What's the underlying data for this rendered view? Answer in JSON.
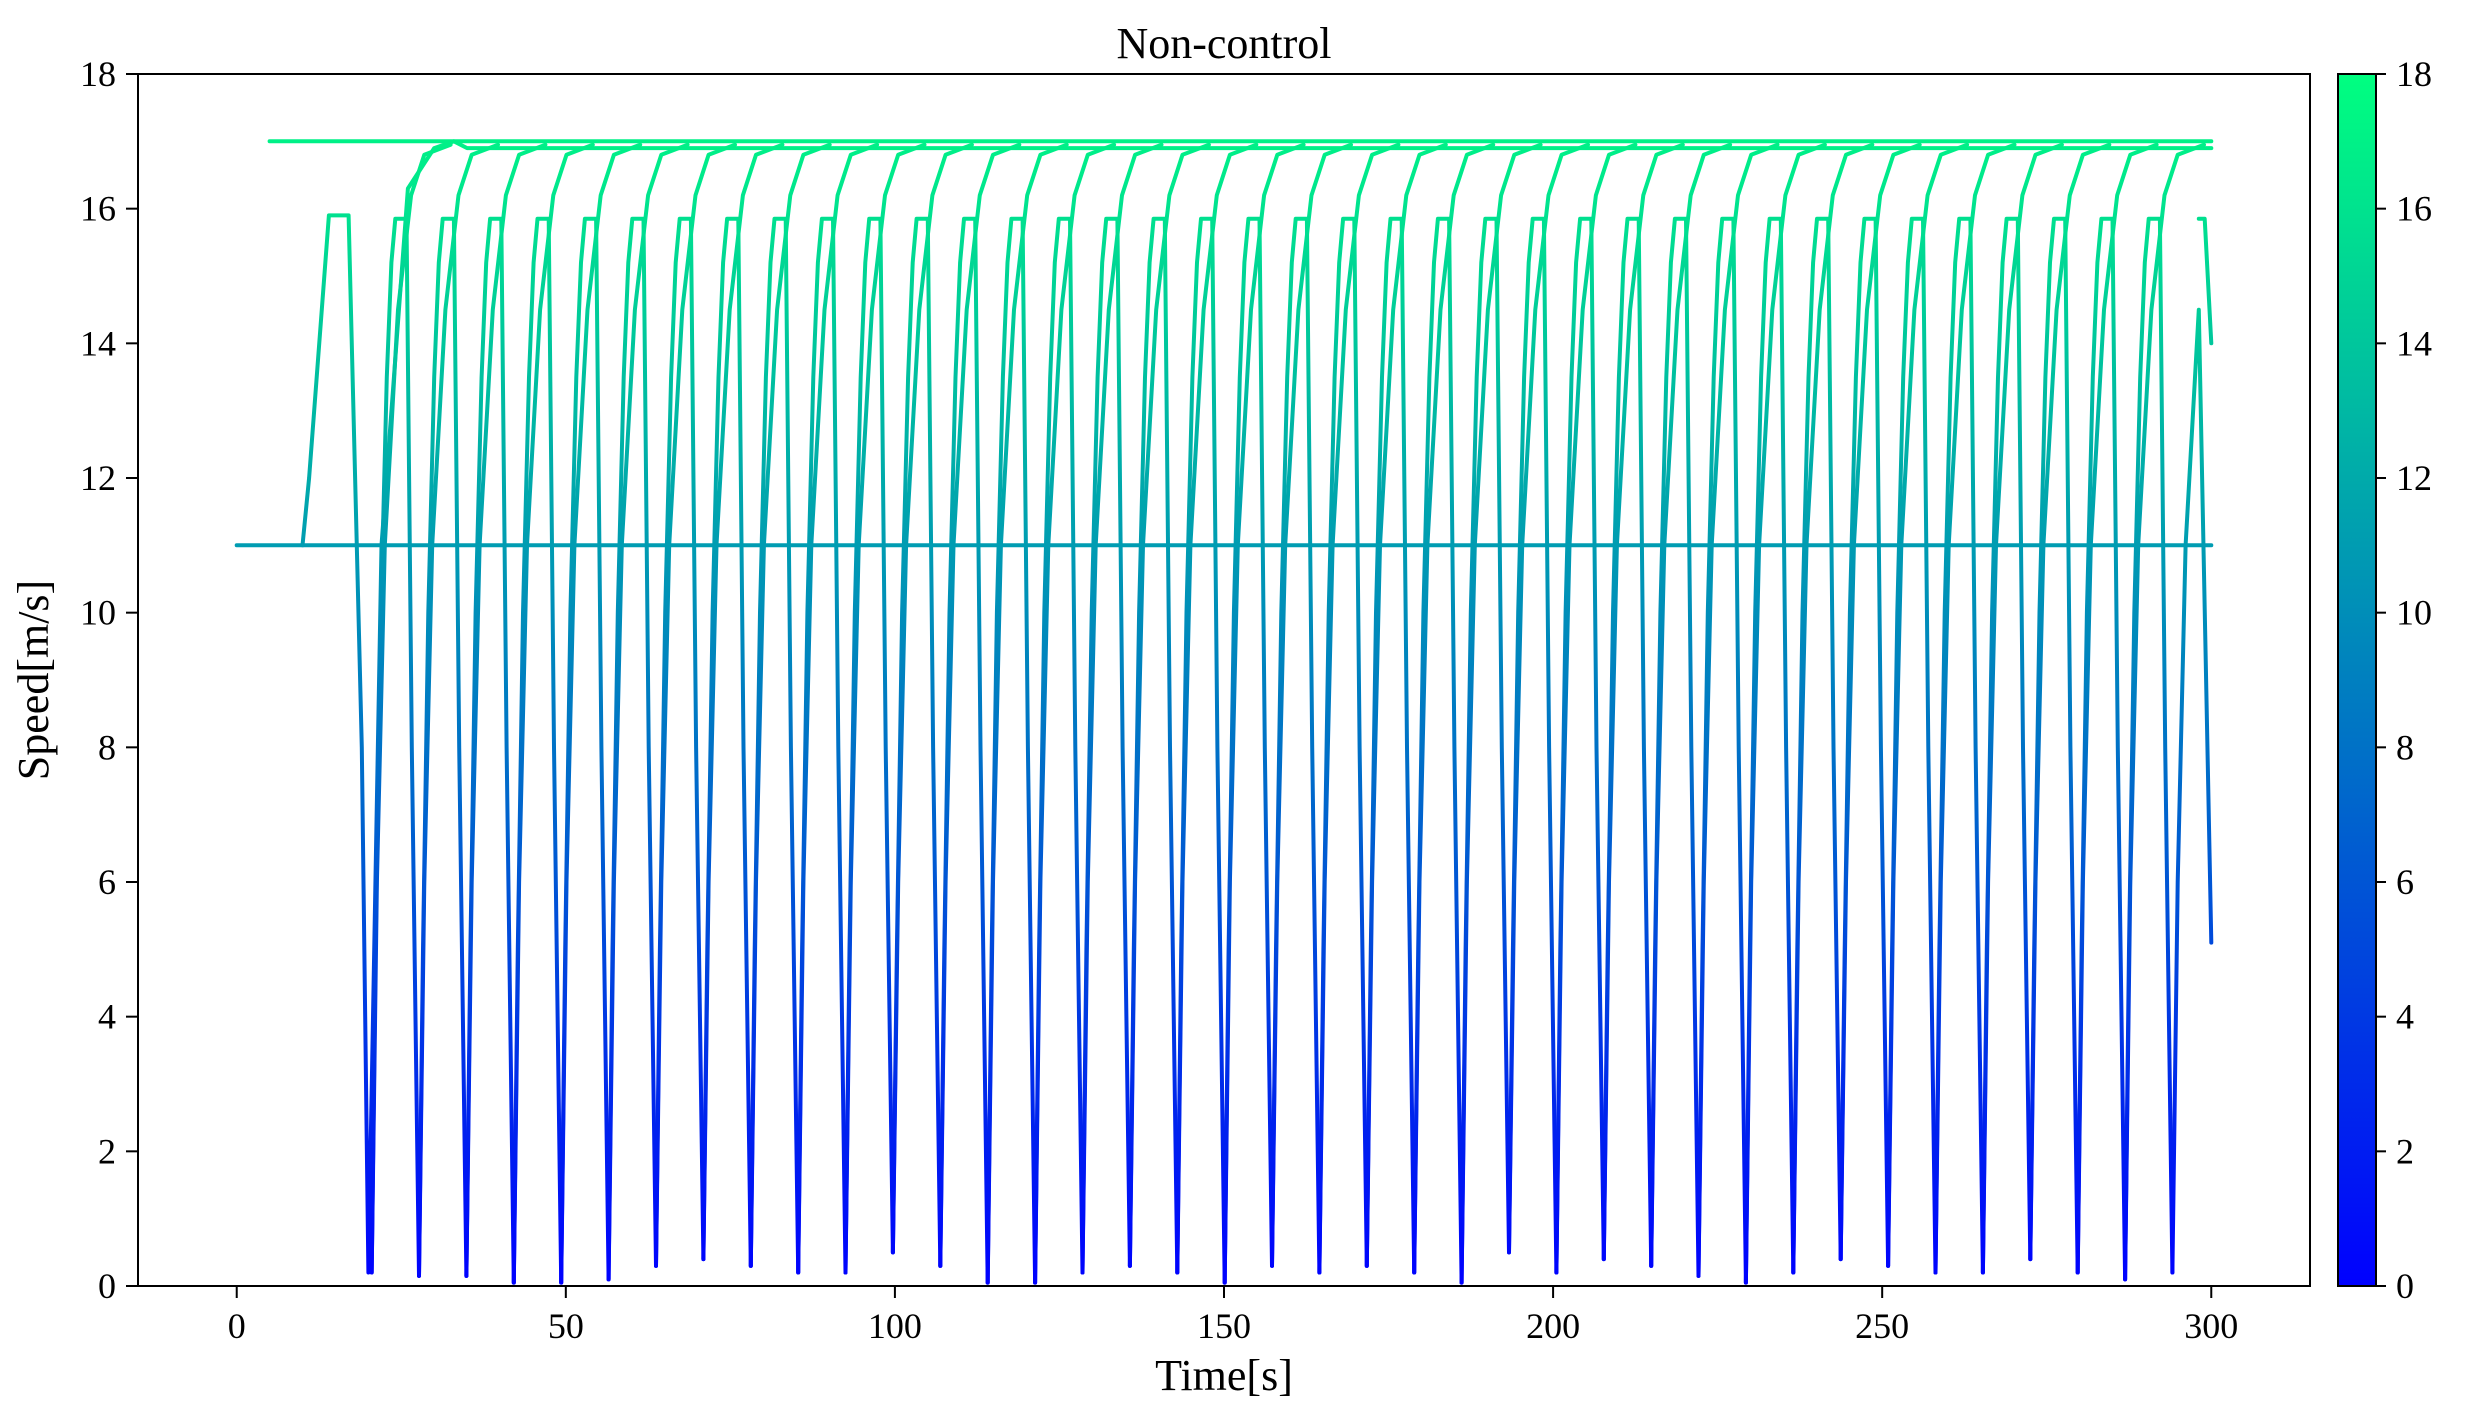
{
  "chart_data": {
    "type": "line",
    "title": "Non-control",
    "xlabel": "Time[s]",
    "ylabel": "Speed[m/s]",
    "xlim": [
      -15,
      315
    ],
    "ylim": [
      0,
      18
    ],
    "xticks": [
      0,
      50,
      100,
      150,
      200,
      250,
      300
    ],
    "yticks": [
      0,
      2,
      4,
      6,
      8,
      10,
      12,
      14,
      16,
      18
    ],
    "grid": false,
    "legend": "none",
    "colormap": {
      "name": "winter",
      "range": [
        0,
        18
      ],
      "ticks": [
        0,
        2,
        4,
        6,
        8,
        10,
        12,
        14,
        16,
        18
      ],
      "low_color": "#0000ff",
      "high_color": "#00ff80"
    },
    "color_encodes": "speed",
    "series": [
      {
        "x": [
          0,
          10,
          300
        ],
        "y": [
          11,
          11,
          11
        ]
      },
      {
        "x": [
          5,
          300
        ],
        "y": [
          17,
          17
        ]
      },
      {
        "x": [
          10,
          11,
          14,
          17,
          19,
          20,
          22,
          26,
          30,
          33,
          35,
          300
        ],
        "y": [
          11,
          12,
          15.9,
          15.9,
          8,
          0.2,
          11,
          16.3,
          16.9,
          17,
          16.9,
          16.9
        ]
      }
    ],
    "cycle": {
      "period_s": 7.2,
      "first_min_time_s": 20.5,
      "last_min_time_s": 293.5,
      "max_speed": 15.85,
      "cruise_low_speed": 11,
      "cruise_high_speed": 17,
      "end_values": [
        5.1,
        14
      ]
    },
    "minima": [
      0.2,
      0.15,
      0.15,
      0.05,
      0.05,
      0.1,
      0.3,
      0.4,
      0.3,
      0.2,
      0.2,
      0.5,
      0.3,
      0.05,
      0.05,
      0.2,
      0.3,
      0.2,
      0.05,
      0.3,
      0.2,
      0.3,
      0.2,
      0.05,
      0.5,
      0.2,
      0.4,
      0.3,
      0.15,
      0.05,
      0.2,
      0.4,
      0.3,
      0.2,
      0.2,
      0.4,
      0.2,
      0.1,
      0.2
    ]
  }
}
